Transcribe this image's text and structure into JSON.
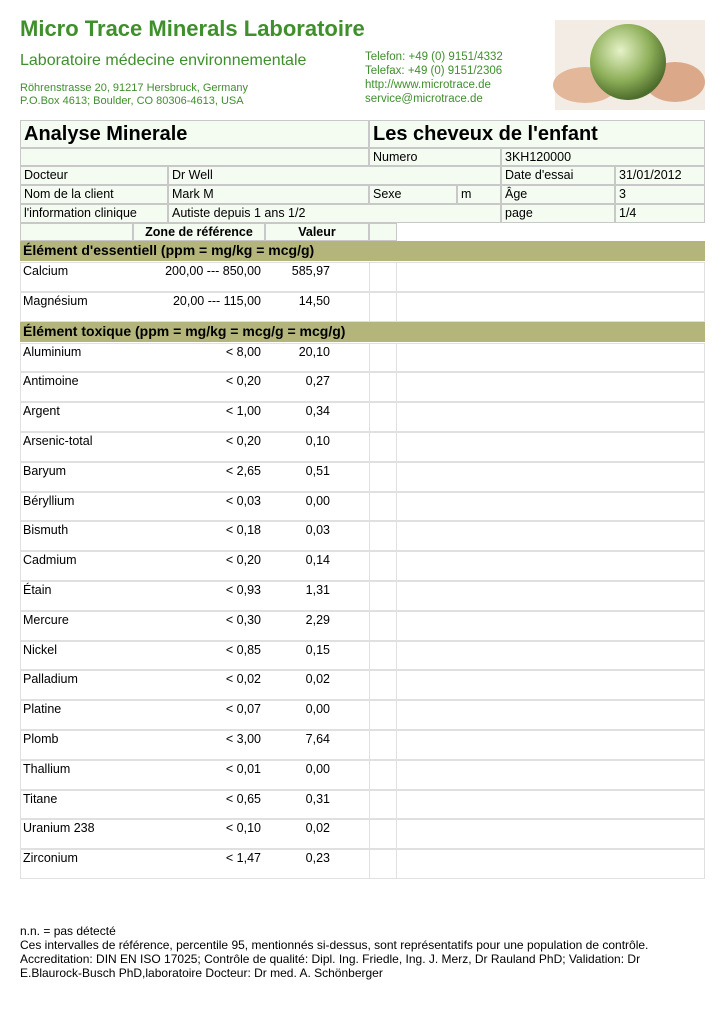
{
  "header": {
    "title": "Micro Trace Minerals Laboratoire",
    "subtitle": "Laboratoire médecine environnementale",
    "address": [
      "Röhrenstrasse 20, 91217 Hersbruck, Germany",
      "P.O.Box 4613; Boulder, CO 80306-4613, USA"
    ],
    "contact": [
      "Telefon: +49 (0) 9151/4332",
      "Telefax: +49 (0) 9151/2306",
      "http://www.microtrace.de",
      "service@microtrace.de"
    ]
  },
  "report": {
    "title": "Analyse Minerale",
    "subject": "Les cheveux de l'enfant",
    "numero_label": "Numero",
    "numero": "3KH120000",
    "doctor_label": "Docteur",
    "doctor": "Dr Well",
    "date_label": "Date d'essai",
    "date": "31/01/2012",
    "client_label": "Nom de la client",
    "client": "Mark M",
    "sex_label": "Sexe",
    "sex": "m",
    "age_label": "Âge",
    "age": "3",
    "info_label": "l'information clinique",
    "info": "Autiste depuis 1 ans 1/2",
    "page_label": "page",
    "page": "1/4"
  },
  "columns": {
    "range": "Zone de référence",
    "value": "Valeur"
  },
  "sections": [
    {
      "title": "Élément d'essentiell (ppm = mg/kg = mcg/g)",
      "rows": [
        {
          "name": "Calcium",
          "range": "200,00 --- 850,00",
          "value": "585,97"
        },
        {
          "name": "Magnésium",
          "range": "20,00 --- 115,00",
          "value": "14,50"
        }
      ]
    },
    {
      "title": "Élément toxique (ppm = mg/kg = mcg/g = mcg/g)",
      "rows": [
        {
          "name": "Aluminium",
          "range": "< 8,00",
          "value": "20,10"
        },
        {
          "name": "Antimoine",
          "range": "< 0,20",
          "value": "0,27"
        },
        {
          "name": "Argent",
          "range": "< 1,00",
          "value": "0,34"
        },
        {
          "name": "Arsenic-total",
          "range": "< 0,20",
          "value": "0,10"
        },
        {
          "name": "Baryum",
          "range": "< 2,65",
          "value": "0,51"
        },
        {
          "name": "Béryllium",
          "range": "< 0,03",
          "value": "0,00"
        },
        {
          "name": "Bismuth",
          "range": "< 0,18",
          "value": "0,03"
        },
        {
          "name": "Cadmium",
          "range": "< 0,20",
          "value": "0,14"
        },
        {
          "name": "Étain",
          "range": "< 0,93",
          "value": "1,31"
        },
        {
          "name": "Mercure",
          "range": "< 0,30",
          "value": "2,29"
        },
        {
          "name": "Nickel",
          "range": "< 0,85",
          "value": "0,15"
        },
        {
          "name": "Palladium",
          "range": "< 0,02",
          "value": "0,02"
        },
        {
          "name": "Platine",
          "range": "< 0,07",
          "value": "0,00"
        },
        {
          "name": "Plomb",
          "range": "< 3,00",
          "value": "7,64"
        },
        {
          "name": "Thallium",
          "range": "< 0,01",
          "value": "0,00"
        },
        {
          "name": "Titane",
          "range": "< 0,65",
          "value": "0,31"
        },
        {
          "name": "Uranium 238",
          "range": "< 0,10",
          "value": "0,02"
        },
        {
          "name": "Zirconium",
          "range": "< 1,47",
          "value": "0,23"
        }
      ]
    }
  ],
  "footer": [
    "n.n. = pas détecté",
    "Ces intervalles de référence, percentile 95, mentionnés si-dessus, sont représentatifs pour une population de contrôle.",
    "Accreditation: DIN EN ISO 17025; Contrôle de qualité: Dipl. Ing. Friedle, Ing. J. Merz, Dr Rauland PhD; Validation: Dr E.Blaurock-Busch PhD,laboratoire Docteur: Dr med. A. Schönberger"
  ]
}
